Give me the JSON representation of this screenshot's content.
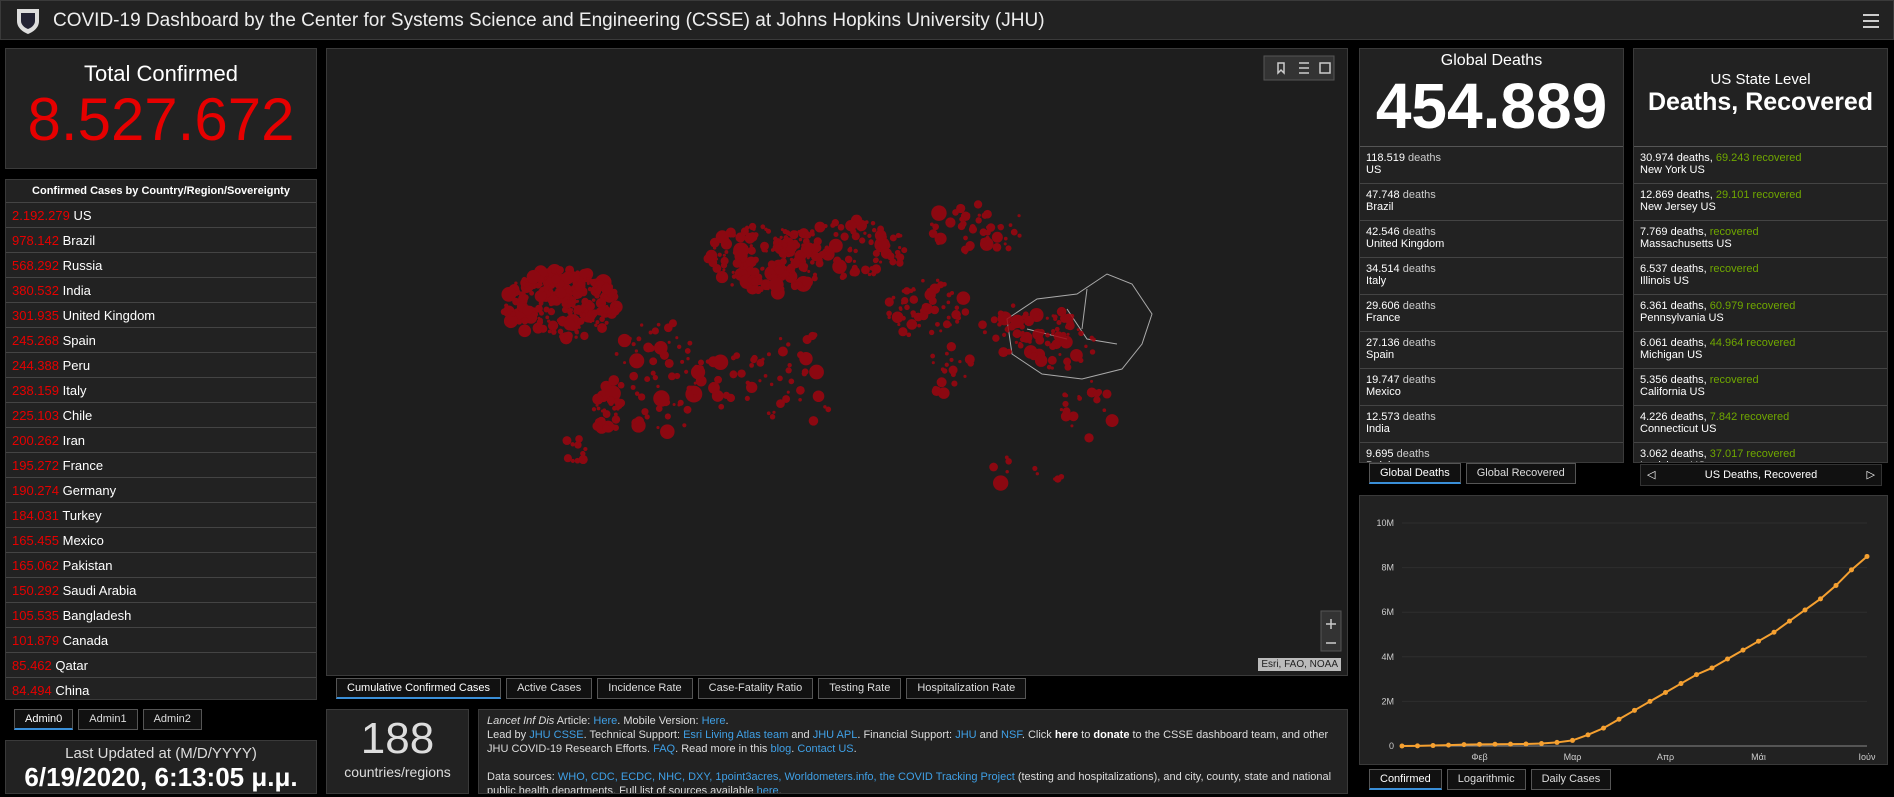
{
  "header": {
    "title": "COVID-19 Dashboard by the Center for Systems Science and Engineering (CSSE) at Johns Hopkins University (JHU)"
  },
  "total_confirmed": {
    "label": "Total Confirmed",
    "value": "8.527.672"
  },
  "countries": {
    "title": "Confirmed Cases by Country/Region/Sovereignty",
    "rows": [
      {
        "value": "2.192.279",
        "name": "US"
      },
      {
        "value": "978.142",
        "name": "Brazil"
      },
      {
        "value": "568.292",
        "name": "Russia"
      },
      {
        "value": "380.532",
        "name": "India"
      },
      {
        "value": "301.935",
        "name": "United Kingdom"
      },
      {
        "value": "245.268",
        "name": "Spain"
      },
      {
        "value": "244.388",
        "name": "Peru"
      },
      {
        "value": "238.159",
        "name": "Italy"
      },
      {
        "value": "225.103",
        "name": "Chile"
      },
      {
        "value": "200.262",
        "name": "Iran"
      },
      {
        "value": "195.272",
        "name": "France"
      },
      {
        "value": "190.274",
        "name": "Germany"
      },
      {
        "value": "184.031",
        "name": "Turkey"
      },
      {
        "value": "165.455",
        "name": "Mexico"
      },
      {
        "value": "165.062",
        "name": "Pakistan"
      },
      {
        "value": "150.292",
        "name": "Saudi Arabia"
      },
      {
        "value": "105.535",
        "name": "Bangladesh"
      },
      {
        "value": "101.879",
        "name": "Canada"
      },
      {
        "value": "85.462",
        "name": "Qatar"
      },
      {
        "value": "84.494",
        "name": "China"
      }
    ]
  },
  "admin_tabs": [
    "Admin0",
    "Admin1",
    "Admin2"
  ],
  "last_updated": {
    "label": "Last Updated at (M/D/YYYY)",
    "value": "6/19/2020, 6:13:05 μ.μ."
  },
  "map": {
    "tabs": [
      "Cumulative Confirmed Cases",
      "Active Cases",
      "Incidence Rate",
      "Case-Fatality Ratio",
      "Testing Rate",
      "Hospitalization Rate"
    ],
    "attribution": "Esri, FAO, NOAA"
  },
  "regions": {
    "value": "188",
    "label": "countries/regions"
  },
  "info": {
    "lines": [
      [
        {
          "text": "Lancet Inf Dis",
          "style": "italic"
        },
        {
          "text": " Article: ",
          "style": "plain"
        },
        {
          "text": "Here",
          "style": "link"
        },
        {
          "text": ". Mobile Version: ",
          "style": "plain"
        },
        {
          "text": "Here",
          "style": "link"
        },
        {
          "text": ".",
          "style": "plain"
        }
      ],
      [
        {
          "text": "Lead by ",
          "style": "plain"
        },
        {
          "text": "JHU CSSE",
          "style": "link"
        },
        {
          "text": ". Technical Support: ",
          "style": "plain"
        },
        {
          "text": "Esri Living Atlas team",
          "style": "link"
        },
        {
          "text": " and ",
          "style": "plain"
        },
        {
          "text": "JHU APL",
          "style": "link"
        },
        {
          "text": ". Financial Support: ",
          "style": "plain"
        },
        {
          "text": "JHU",
          "style": "link"
        },
        {
          "text": " and ",
          "style": "plain"
        },
        {
          "text": "NSF",
          "style": "link"
        },
        {
          "text": ". Click ",
          "style": "plain"
        },
        {
          "text": "here",
          "style": "bold"
        },
        {
          "text": " to ",
          "style": "plain"
        },
        {
          "text": "donate",
          "style": "bold"
        },
        {
          "text": " to the CSSE dashboard team, and other JHU COVID-19 Research Efforts. ",
          "style": "plain"
        },
        {
          "text": "FAQ",
          "style": "link"
        },
        {
          "text": ". Read more in this ",
          "style": "plain"
        },
        {
          "text": "blog",
          "style": "link"
        },
        {
          "text": ". ",
          "style": "plain"
        },
        {
          "text": "Contact US",
          "style": "link"
        },
        {
          "text": ".",
          "style": "plain"
        }
      ],
      [
        {
          "text": "Data sources: ",
          "style": "plain"
        },
        {
          "text": "WHO, CDC, ECDC, NHC, DXY, 1point3acres, Worldometers.info, the COVID Tracking Project",
          "style": "link"
        },
        {
          "text": " (testing and hospitalizations), and city, county, state and national public health departments. Full list of sources available ",
          "style": "plain"
        },
        {
          "text": "here",
          "style": "link"
        },
        {
          "text": ".",
          "style": "plain"
        }
      ]
    ]
  },
  "global_deaths": {
    "title": "Global Deaths",
    "value": "454.889",
    "tabs": [
      "Global Deaths",
      "Global Recovered"
    ],
    "rows": [
      {
        "value": "118.519",
        "label": "deaths",
        "name": "US"
      },
      {
        "value": "47.748",
        "label": "deaths",
        "name": "Brazil"
      },
      {
        "value": "42.546",
        "label": "deaths",
        "name": "United Kingdom"
      },
      {
        "value": "34.514",
        "label": "deaths",
        "name": "Italy"
      },
      {
        "value": "29.606",
        "label": "deaths",
        "name": "France"
      },
      {
        "value": "27.136",
        "label": "deaths",
        "name": "Spain"
      },
      {
        "value": "19.747",
        "label": "deaths",
        "name": "Mexico"
      },
      {
        "value": "12.573",
        "label": "deaths",
        "name": "India"
      },
      {
        "value": "9.695",
        "label": "deaths",
        "name": "Belgium"
      }
    ]
  },
  "us_states": {
    "subtitle": "US State Level",
    "title": "Deaths, Recovered",
    "nav": "US Deaths, Recovered",
    "rows": [
      {
        "deaths": "30.974 deaths,",
        "recovered": "69.243 recovered",
        "name": "New York US"
      },
      {
        "deaths": "12.869 deaths,",
        "recovered": "29.101 recovered",
        "name": "New Jersey US"
      },
      {
        "deaths": "7.769 deaths,",
        "recovered": "recovered",
        "name": "Massachusetts US"
      },
      {
        "deaths": "6.537 deaths,",
        "recovered": "recovered",
        "name": "Illinois US"
      },
      {
        "deaths": "6.361 deaths,",
        "recovered": "60.979 recovered",
        "name": "Pennsylvania US"
      },
      {
        "deaths": "6.061 deaths,",
        "recovered": "44.964 recovered",
        "name": "Michigan US"
      },
      {
        "deaths": "5.356 deaths,",
        "recovered": "recovered",
        "name": "California US"
      },
      {
        "deaths": "4.226 deaths,",
        "recovered": "7.842 recovered",
        "name": "Connecticut US"
      },
      {
        "deaths": "3.062 deaths,",
        "recovered": "37.017 recovered",
        "name": "Louisiana US"
      }
    ]
  },
  "chart_tabs": [
    "Confirmed",
    "Logarithmic",
    "Daily Cases"
  ],
  "chart_data": {
    "type": "line",
    "color": "#f5a030",
    "categories": [
      null,
      null,
      null,
      null,
      null,
      "Φεβ",
      null,
      null,
      null,
      null,
      null,
      "Μαρ",
      null,
      null,
      null,
      null,
      null,
      "Απρ",
      null,
      null,
      null,
      null,
      null,
      "Μάι",
      null,
      null,
      null,
      null,
      null,
      null,
      "Ιούν"
    ],
    "values": [
      600,
      6000,
      20000,
      40000,
      60000,
      75000,
      80000,
      85000,
      90000,
      110000,
      160000,
      250000,
      500000,
      800000,
      1200000,
      1600000,
      2000000,
      2400000,
      2800000,
      3200000,
      3500000,
      3900000,
      4300000,
      4700000,
      5100000,
      5600000,
      6100000,
      6600000,
      7200000,
      7900000,
      8500000
    ],
    "ylim": [
      0,
      10000000
    ],
    "yticks": [
      0,
      {
        "value": 2000000,
        "label": "2M"
      },
      {
        "value": 4000000,
        "label": "4M"
      },
      {
        "value": 6000000,
        "label": "6M"
      },
      {
        "value": 8000000,
        "label": "8M"
      },
      {
        "value": 10000000,
        "label": "10M"
      }
    ],
    "grid": true
  }
}
